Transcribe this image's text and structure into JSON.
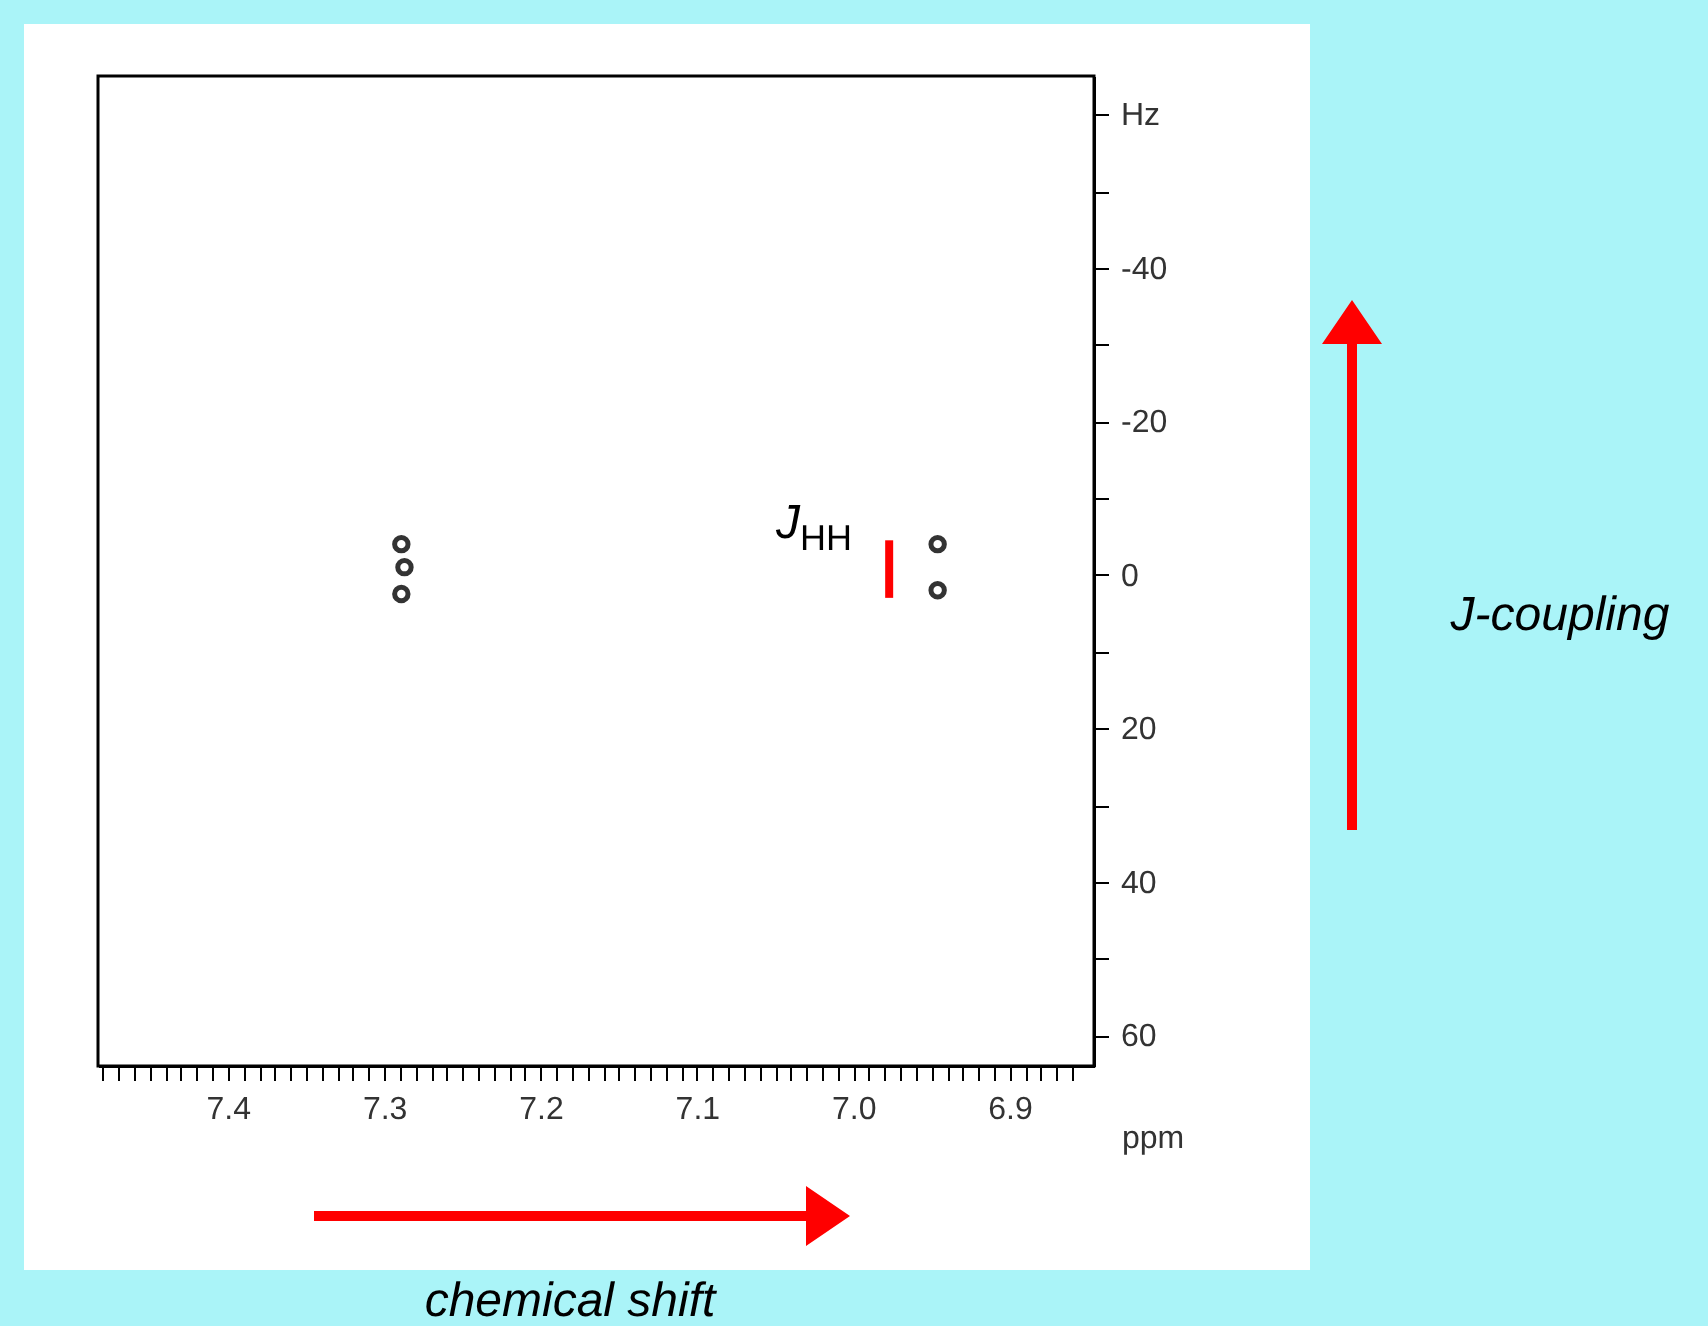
{
  "chart_data": {
    "type": "scatter",
    "xlabel": "ppm",
    "xlim": [
      7.483,
      6.846
    ],
    "ylim": [
      64,
      -65
    ],
    "xticks": [
      7.4,
      7.3,
      7.2,
      7.1,
      {
        "value": 7,
        "label": "7.0"
      },
      6.9,
      {
        "value": 7.48,
        "label": null
      },
      {
        "value": 7.47,
        "label": null
      },
      {
        "value": 7.46,
        "label": null
      },
      {
        "value": 7.45,
        "label": null
      },
      {
        "value": 7.44,
        "label": null
      },
      {
        "value": 7.43,
        "label": null
      },
      {
        "value": 7.42,
        "label": null
      },
      {
        "value": 7.41,
        "label": null
      },
      {
        "value": 7.39,
        "label": null
      },
      {
        "value": 7.38,
        "label": null
      },
      {
        "value": 7.37,
        "label": null
      },
      {
        "value": 7.36,
        "label": null
      },
      {
        "value": 7.35,
        "label": null
      },
      {
        "value": 7.34,
        "label": null
      },
      {
        "value": 7.33,
        "label": null
      },
      {
        "value": 7.32,
        "label": null
      },
      {
        "value": 7.31,
        "label": null
      },
      {
        "value": 7.29,
        "label": null
      },
      {
        "value": 7.28,
        "label": null
      },
      {
        "value": 7.27,
        "label": null
      },
      {
        "value": 7.26,
        "label": null
      },
      {
        "value": 7.25,
        "label": null
      },
      {
        "value": 7.24,
        "label": null
      },
      {
        "value": 7.23,
        "label": null
      },
      {
        "value": 7.22,
        "label": null
      },
      {
        "value": 7.21,
        "label": null
      },
      {
        "value": 7.19,
        "label": null
      },
      {
        "value": 7.18,
        "label": null
      },
      {
        "value": 7.17,
        "label": null
      },
      {
        "value": 7.16,
        "label": null
      },
      {
        "value": 7.15,
        "label": null
      },
      {
        "value": 7.14,
        "label": null
      },
      {
        "value": 7.13,
        "label": null
      },
      {
        "value": 7.12,
        "label": null
      },
      {
        "value": 7.11,
        "label": null
      },
      {
        "value": 7.09,
        "label": null
      },
      {
        "value": 7.08,
        "label": null
      },
      {
        "value": 7.07,
        "label": null
      },
      {
        "value": 7.06,
        "label": null
      },
      {
        "value": 7.05,
        "label": null
      },
      {
        "value": 7.04,
        "label": null
      },
      {
        "value": 7.03,
        "label": null
      },
      {
        "value": 7.02,
        "label": null
      },
      {
        "value": 7.01,
        "label": null
      },
      {
        "value": 6.99,
        "label": null
      },
      {
        "value": 6.98,
        "label": null
      },
      {
        "value": 6.97,
        "label": null
      },
      {
        "value": 6.96,
        "label": null
      },
      {
        "value": 6.95,
        "label": null
      },
      {
        "value": 6.94,
        "label": null
      },
      {
        "value": 6.93,
        "label": null
      },
      {
        "value": 6.92,
        "label": null
      },
      {
        "value": 6.91,
        "label": null
      },
      {
        "value": 6.89,
        "label": null
      },
      {
        "value": 6.88,
        "label": null
      },
      {
        "value": 6.87,
        "label": null
      },
      {
        "value": 6.86,
        "label": null
      }
    ],
    "yticks": [
      {
        "value": -60,
        "label": "Hz"
      },
      -40,
      -20,
      0,
      20,
      40,
      60,
      {
        "value": -50,
        "label": null
      },
      {
        "value": -30,
        "label": null
      },
      {
        "value": -10,
        "label": null
      },
      {
        "value": 10,
        "label": null
      },
      {
        "value": 30,
        "label": null
      },
      {
        "value": 50,
        "label": null
      }
    ],
    "grid": false,
    "series": [
      {
        "marker": "circle",
        "color": "#333333",
        "x": [
          7.289,
          7.287,
          7.289,
          6.946,
          6.946
        ],
        "values": [
          -4,
          -1,
          2.5,
          -4,
          2
        ]
      },
      {
        "type": "line",
        "marker": "none",
        "color": "#ff0000",
        "x": [
          6.977,
          6.977
        ],
        "values": [
          -4.5,
          3
        ]
      }
    ],
    "annotations": [
      "J$_{HH}$",
      "chemical shift",
      "J-coupling"
    ]
  }
}
